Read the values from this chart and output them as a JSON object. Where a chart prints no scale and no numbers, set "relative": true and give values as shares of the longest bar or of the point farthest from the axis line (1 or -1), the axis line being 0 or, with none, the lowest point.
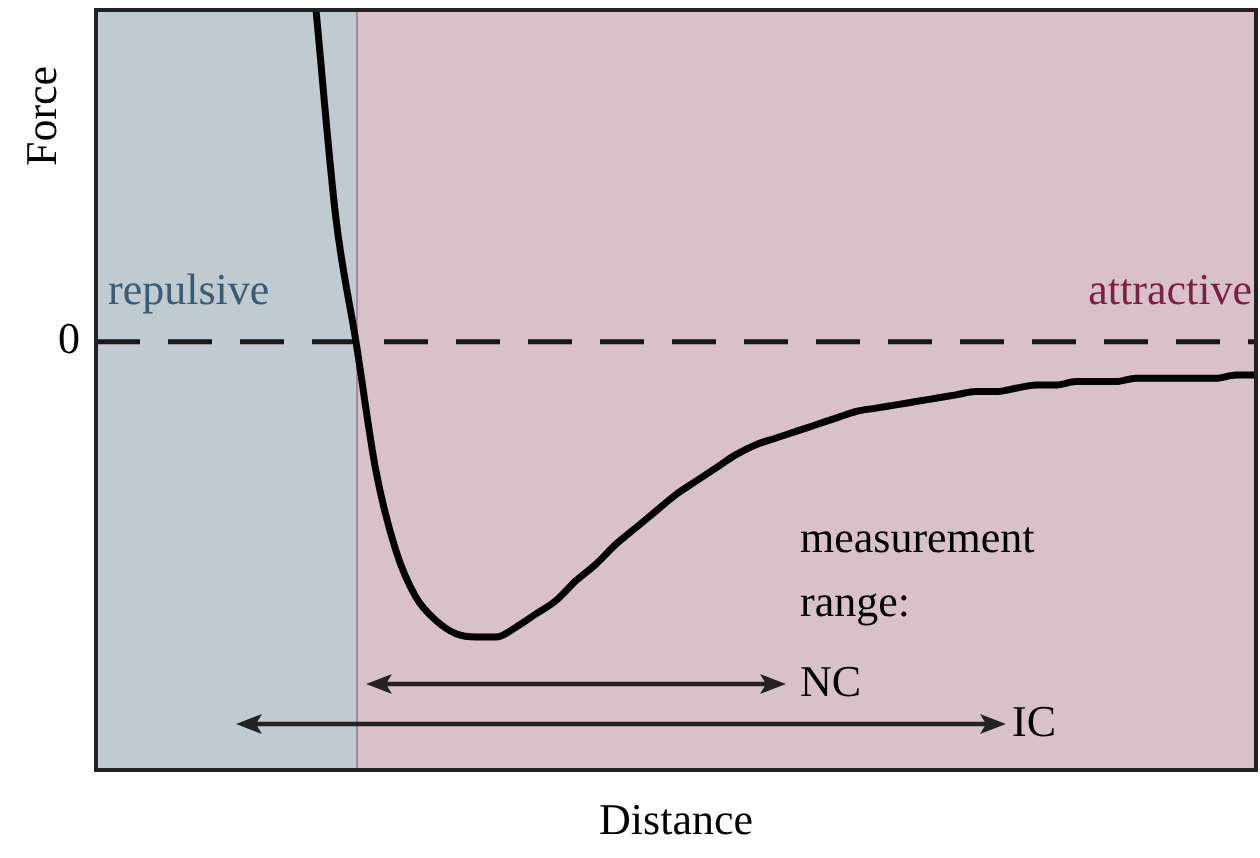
{
  "chart_data": {
    "type": "line",
    "relative": true,
    "xlabel": "Distance",
    "ylabel": "Force",
    "categories": [
      null,
      null,
      null,
      null,
      null,
      null,
      null,
      null,
      null,
      null,
      null,
      null,
      null,
      null,
      null,
      null,
      null,
      null,
      null,
      null,
      null,
      null,
      null,
      null,
      null,
      null,
      null,
      null,
      null,
      null,
      null,
      null,
      null,
      null,
      null,
      null,
      null,
      null,
      null,
      null,
      null,
      null,
      null,
      null,
      null,
      null,
      null,
      null,
      null,
      null,
      null,
      null,
      null,
      null,
      null,
      null,
      null,
      null,
      null
    ],
    "series": [
      {
        "color": "#000000",
        "values": [
          null,
          null,
          null,
          null,
          null,
          null,
          null,
          null,
          null,
          null,
          null,
          1.0,
          0.37,
          0.0,
          -0.39,
          -0.63,
          -0.77,
          -0.84,
          -0.88,
          -0.89,
          -0.89,
          -0.86,
          -0.82,
          -0.78,
          -0.72,
          -0.67,
          -0.61,
          -0.56,
          -0.51,
          -0.46,
          -0.42,
          -0.38,
          -0.34,
          -0.31,
          -0.29,
          -0.27,
          -0.25,
          -0.23,
          -0.21,
          -0.2,
          -0.19,
          -0.18,
          -0.17,
          -0.16,
          -0.15,
          -0.15,
          -0.14,
          -0.13,
          -0.13,
          -0.12,
          -0.12,
          -0.12,
          -0.11,
          -0.11,
          -0.11,
          -0.11,
          -0.11,
          -0.1,
          -0.1
        ]
      }
    ],
    "marker": "none",
    "line_style": "solid",
    "legend": false,
    "ref_lines": [
      {
        "axis": "y",
        "value": 0,
        "label": "0",
        "color": "#1a1a1a",
        "line_style": "dashed"
      }
    ],
    "annotations": [
      "repulsive",
      "attractive",
      "measurement",
      "range:",
      "NC",
      "IC"
    ]
  }
}
